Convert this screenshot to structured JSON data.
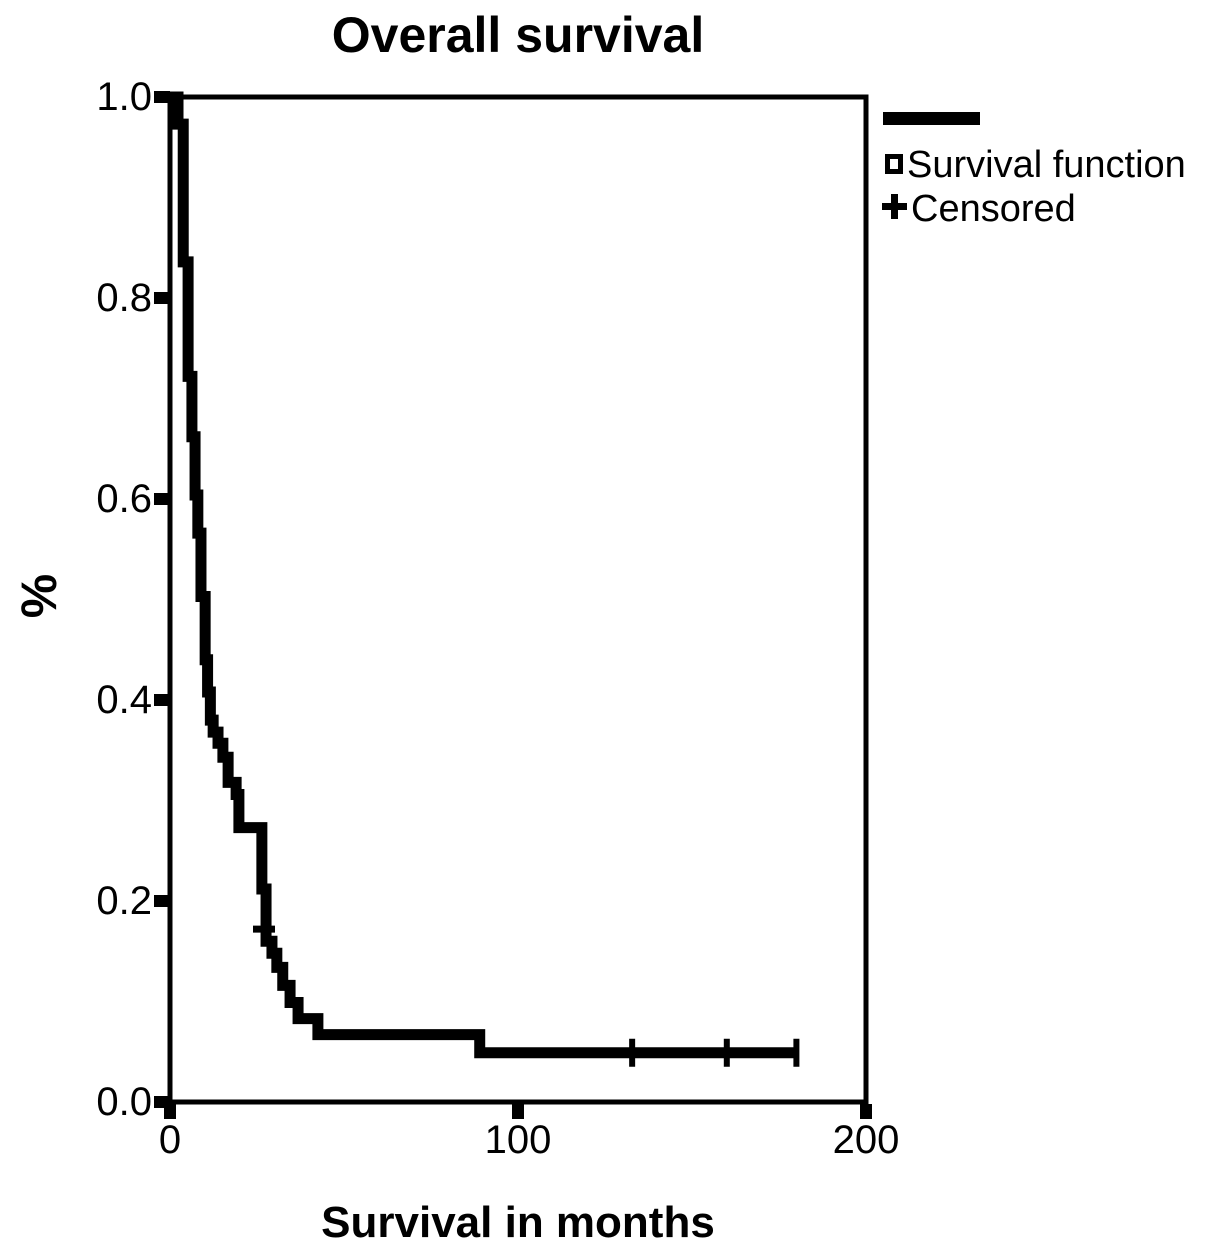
{
  "figure": {
    "background_color": "#ffffff",
    "line_color": "#000000",
    "text_color": "#000000"
  },
  "chart_data": {
    "type": "line",
    "subtype": "kaplan-meier-step-curve",
    "title": "Overall survival",
    "xlabel": "Survival in months",
    "ylabel": "%",
    "xlim": [
      0,
      200
    ],
    "ylim": [
      0.0,
      1.0
    ],
    "grid": false,
    "frame": true,
    "x_ticks": [
      {
        "v": 0,
        "label": "0"
      },
      {
        "v": 100,
        "label": "100"
      },
      {
        "v": 200,
        "label": "200"
      }
    ],
    "y_ticks": [
      {
        "v": 0.0,
        "label": "0.0"
      },
      {
        "v": 0.2,
        "label": "0.2"
      },
      {
        "v": 0.4,
        "label": "0.4"
      },
      {
        "v": 0.6,
        "label": "0.6"
      },
      {
        "v": 0.8,
        "label": "0.8"
      },
      {
        "v": 1.0,
        "label": "1.0"
      }
    ],
    "legend": {
      "position": "top-right-outside",
      "entries": [
        {
          "label": "Survival function",
          "marker": "open-square",
          "line": "thick-solid-black"
        },
        {
          "label": "Censored",
          "marker": "plus"
        }
      ]
    },
    "series": [
      {
        "name": "Survival function",
        "step": "post",
        "color": "#000000",
        "points": [
          [
            0,
            1.0
          ],
          [
            2.3,
            0.973
          ],
          [
            3.8,
            0.836
          ],
          [
            5.2,
            0.722
          ],
          [
            6.3,
            0.662
          ],
          [
            7.2,
            0.604
          ],
          [
            8.0,
            0.566
          ],
          [
            8.9,
            0.503
          ],
          [
            10.1,
            0.44
          ],
          [
            10.8,
            0.408
          ],
          [
            11.6,
            0.38
          ],
          [
            12.4,
            0.368
          ],
          [
            13.8,
            0.357
          ],
          [
            15.2,
            0.343
          ],
          [
            16.7,
            0.318
          ],
          [
            19.0,
            0.306
          ],
          [
            19.8,
            0.273
          ],
          [
            26.4,
            0.212
          ],
          [
            27.6,
            0.16
          ],
          [
            29.3,
            0.148
          ],
          [
            30.7,
            0.134
          ],
          [
            32.4,
            0.116
          ],
          [
            34.5,
            0.099
          ],
          [
            36.8,
            0.083
          ],
          [
            42.5,
            0.067
          ],
          [
            89.0,
            0.049
          ],
          [
            180.0,
            0.049
          ]
        ]
      }
    ],
    "censored_points": [
      {
        "t": 27.3,
        "s": 0.172,
        "tick_direction": "horizontal"
      },
      {
        "t": 132.8,
        "s": 0.049,
        "tick_direction": "vertical"
      },
      {
        "t": 160.0,
        "s": 0.049,
        "tick_direction": "vertical"
      },
      {
        "t": 180.0,
        "s": 0.049,
        "tick_direction": "vertical"
      }
    ]
  }
}
